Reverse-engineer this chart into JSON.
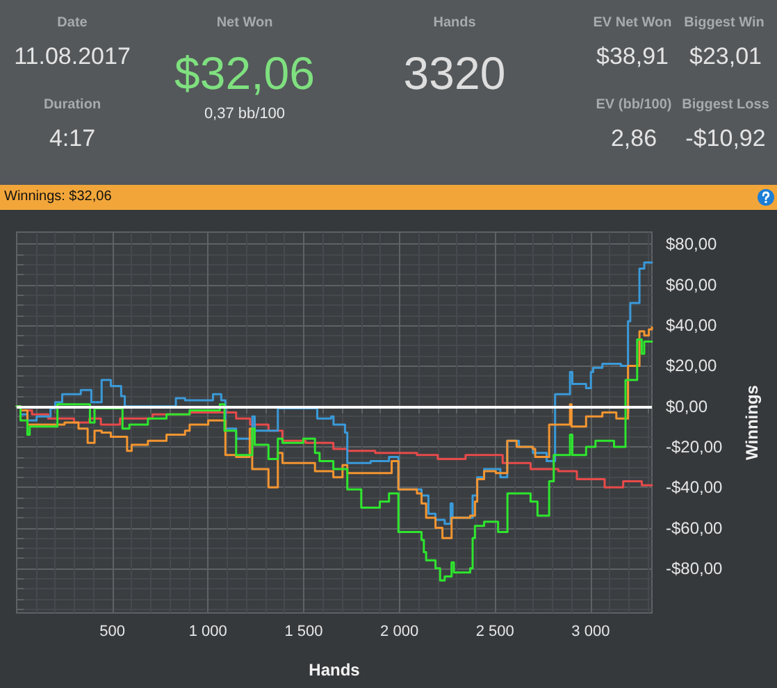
{
  "chart_data": [
    {
      "type": "other",
      "annotations": [
        "Date",
        "11.08.2017",
        "Duration",
        "4:17",
        "Net Won",
        "$32,06",
        "0,37 bb/100",
        "Hands",
        "3320",
        "EV Net Won",
        "$38,91",
        "Biggest Win",
        "$23,01",
        "EV (bb/100)",
        "2,86",
        "Biggest Loss",
        "-$10,92"
      ]
    },
    {
      "type": "step",
      "title": "Winnings: $32,06",
      "xlabel": "Hands",
      "ylabel": "Winnings",
      "xlim": [
        0,
        3320
      ],
      "ylim": [
        -102,
        86
      ],
      "grid": true,
      "xticks": [
        {
          "value": 100,
          "label": null
        },
        {
          "value": 200,
          "label": null
        },
        {
          "value": 300,
          "label": null
        },
        {
          "value": 400,
          "label": null
        },
        500,
        {
          "value": 600,
          "label": null
        },
        {
          "value": 700,
          "label": null
        },
        {
          "value": 800,
          "label": null
        },
        {
          "value": 900,
          "label": null
        },
        {
          "value": 1000,
          "label": "1 000"
        },
        {
          "value": 1100,
          "label": null
        },
        {
          "value": 1200,
          "label": null
        },
        {
          "value": 1300,
          "label": null
        },
        {
          "value": 1400,
          "label": null
        },
        {
          "value": 1500,
          "label": "1 500"
        },
        {
          "value": 1600,
          "label": null
        },
        {
          "value": 1700,
          "label": null
        },
        {
          "value": 1800,
          "label": null
        },
        {
          "value": 1900,
          "label": null
        },
        {
          "value": 2000,
          "label": "2 000"
        },
        {
          "value": 2100,
          "label": null
        },
        {
          "value": 2200,
          "label": null
        },
        {
          "value": 2300,
          "label": null
        },
        {
          "value": 2400,
          "label": null
        },
        {
          "value": 2500,
          "label": "2 500"
        },
        {
          "value": 2600,
          "label": null
        },
        {
          "value": 2700,
          "label": null
        },
        {
          "value": 2800,
          "label": null
        },
        {
          "value": 2900,
          "label": null
        },
        {
          "value": 3000,
          "label": "3 000"
        },
        {
          "value": 3100,
          "label": null
        },
        {
          "value": 3200,
          "label": null
        },
        {
          "value": 3300,
          "label": null
        }
      ],
      "yticks": [
        {
          "value": -100,
          "label": null
        },
        {
          "value": -95,
          "label": null
        },
        {
          "value": -90,
          "label": null
        },
        {
          "value": -85,
          "label": null
        },
        {
          "value": -80,
          "label": "-$80,00"
        },
        {
          "value": -75,
          "label": null
        },
        {
          "value": -70,
          "label": null
        },
        {
          "value": -65,
          "label": null
        },
        {
          "value": -60,
          "label": "-$60,00"
        },
        {
          "value": -55,
          "label": null
        },
        {
          "value": -50,
          "label": null
        },
        {
          "value": -45,
          "label": null
        },
        {
          "value": -40,
          "label": "-$40,00"
        },
        {
          "value": -35,
          "label": null
        },
        {
          "value": -30,
          "label": null
        },
        {
          "value": -25,
          "label": null
        },
        {
          "value": -20,
          "label": "-$20,00"
        },
        {
          "value": -15,
          "label": null
        },
        {
          "value": -10,
          "label": null
        },
        {
          "value": -5,
          "label": null
        },
        {
          "value": 0,
          "label": "$0,00"
        },
        {
          "value": 5,
          "label": null
        },
        {
          "value": 10,
          "label": null
        },
        {
          "value": 15,
          "label": null
        },
        {
          "value": 20,
          "label": "$20,00"
        },
        {
          "value": 25,
          "label": null
        },
        {
          "value": 30,
          "label": null
        },
        {
          "value": 35,
          "label": null
        },
        {
          "value": 40,
          "label": "$40,00"
        },
        {
          "value": 45,
          "label": null
        },
        {
          "value": 50,
          "label": null
        },
        {
          "value": 55,
          "label": null
        },
        {
          "value": 60,
          "label": "$60,00"
        },
        {
          "value": 65,
          "label": null
        },
        {
          "value": 70,
          "label": null
        },
        {
          "value": 75,
          "label": null
        },
        {
          "value": 80,
          "label": "$80,00"
        }
      ],
      "ref_lines": [
        {
          "axis": "y",
          "value": 0,
          "color": "#ffffff"
        }
      ],
      "series": [
        {
          "color": "#e84a4a",
          "x": [
            0,
            20,
            80,
            165,
            300,
            380,
            440,
            540,
            710,
            904,
            1074,
            1147,
            1220,
            1316,
            1389,
            1510,
            1655,
            1728,
            1874,
            2092,
            2201,
            2346,
            2540,
            2686,
            2831,
            2928,
            3073,
            3170,
            3267,
            3320
          ],
          "values": [
            0,
            -2,
            -4,
            -6,
            -8,
            -6,
            -9,
            -6,
            -4,
            -3,
            -3,
            -6,
            -9,
            -12,
            -17,
            -18,
            -21,
            -22,
            -23,
            -24,
            -26,
            -24,
            -28,
            -31,
            -32,
            -36,
            -40,
            -37,
            -39,
            -39
          ]
        },
        {
          "color": "#3a9ad9",
          "x": [
            0,
            20,
            56,
            104,
            177,
            201,
            238,
            335,
            390,
            444,
            492,
            546,
            565,
            832,
            880,
            1026,
            1069,
            1091,
            1147,
            1232,
            1244,
            1365,
            1571,
            1644,
            1656,
            1716,
            1728,
            1850,
            1946,
            1995,
            2116,
            2152,
            2189,
            2237,
            2268,
            2278,
            2383,
            2407,
            2443,
            2528,
            2564,
            2625,
            2698,
            2770,
            2814,
            2892,
            2904,
            2976,
            3001,
            3013,
            3061,
            3158,
            3195,
            3207,
            3255,
            3280,
            3320
          ],
          "values": [
            0,
            -4,
            -7,
            -5,
            -1,
            2,
            6,
            8,
            2,
            13,
            10,
            5,
            0,
            4,
            3,
            6,
            3,
            -11,
            -16,
            -5,
            -12,
            -1,
            -6,
            -5,
            -9,
            -13,
            -28,
            -27,
            -25,
            -41,
            -44,
            -53,
            -56,
            -58,
            -48,
            -55,
            -44,
            -35,
            -31,
            -35,
            -17,
            -20,
            -23,
            -27,
            6,
            17,
            11,
            9,
            17,
            19,
            21,
            20,
            42,
            51,
            68,
            71,
            71
          ]
        },
        {
          "color": "#f39530",
          "x": [
            0,
            20,
            56,
            153,
            250,
            323,
            371,
            407,
            444,
            492,
            546,
            577,
            601,
            686,
            783,
            880,
            904,
            1001,
            1091,
            1147,
            1218,
            1231,
            1316,
            1365,
            1389,
            1559,
            1655,
            1703,
            1728,
            1960,
            1995,
            2092,
            2116,
            2140,
            2189,
            2225,
            2273,
            2370,
            2395,
            2407,
            2443,
            2504,
            2564,
            2613,
            2698,
            2710,
            2783,
            2892,
            2900,
            2976,
            3061,
            3134,
            3195,
            3255,
            3280,
            3304,
            3320
          ],
          "values": [
            0,
            -2,
            -9,
            -9,
            -8,
            -11,
            -18,
            -12,
            -13,
            -15,
            -15,
            -22,
            -19,
            -17,
            -14,
            -12,
            -9,
            -7,
            -24,
            -25,
            -11,
            -31,
            -40,
            -23,
            -28,
            -32,
            -35,
            -29,
            -33,
            -27,
            -41,
            -43,
            -48,
            -55,
            -60,
            -65,
            -55,
            -54,
            -47,
            -36,
            -32,
            -33,
            -17,
            -20,
            -21,
            -25,
            -9,
            1,
            -10,
            -5,
            -3,
            -6,
            20,
            37,
            35,
            38,
            39
          ]
        },
        {
          "color": "#2ee62e",
          "x": [
            0,
            20,
            56,
            68,
            213,
            383,
            407,
            553,
            589,
            686,
            783,
            904,
            1062,
            1086,
            1147,
            1231,
            1244,
            1316,
            1365,
            1389,
            1498,
            1559,
            1583,
            1655,
            1728,
            1801,
            1898,
            1946,
            1995,
            2116,
            2128,
            2140,
            2189,
            2213,
            2237,
            2273,
            2285,
            2370,
            2383,
            2395,
            2443,
            2516,
            2565,
            2686,
            2722,
            2783,
            2807,
            2892,
            2904,
            2976,
            3025,
            3122,
            3182,
            3243,
            3267,
            3280,
            3320
          ],
          "values": [
            0,
            -7,
            -14,
            -10,
            1,
            -8,
            -1,
            -11,
            -9,
            -6,
            -4,
            -2,
            1,
            -12,
            -24,
            -11,
            -19,
            -26,
            -16,
            -18,
            -16,
            -23,
            -27,
            -31,
            -41,
            -50,
            -47,
            -43,
            -62,
            -66,
            -72,
            -76,
            -80,
            -86,
            -84,
            -77,
            -82,
            -80,
            -65,
            -59,
            -57,
            -62,
            -43,
            -47,
            -54,
            -37,
            -24,
            -14,
            -24,
            -20,
            -17,
            -20,
            13,
            33,
            26,
            32,
            32
          ]
        }
      ]
    }
  ]
}
